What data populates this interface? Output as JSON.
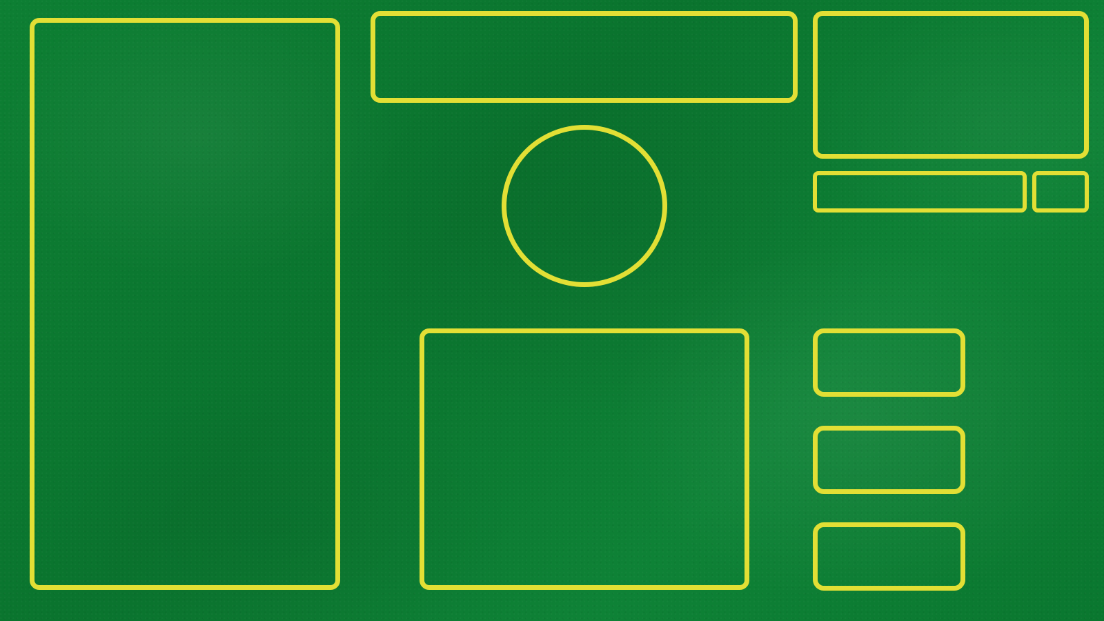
{
  "table": {
    "surface": "green-felt",
    "felt_color": "#0b7a30",
    "outline_color": "#e2df35",
    "zones": [
      {
        "name": "left-card-zone",
        "shape": "rounded-rectangle"
      },
      {
        "name": "top-center-zone",
        "shape": "rounded-rectangle"
      },
      {
        "name": "top-right-zone",
        "shape": "rounded-rectangle"
      },
      {
        "name": "right-wide-slot",
        "shape": "rounded-rectangle"
      },
      {
        "name": "right-small-slot",
        "shape": "rounded-rectangle"
      },
      {
        "name": "center-circle-zone",
        "shape": "circle"
      },
      {
        "name": "bottom-center-zone",
        "shape": "rounded-rectangle"
      },
      {
        "name": "right-slot-1",
        "shape": "rounded-rectangle"
      },
      {
        "name": "right-slot-2",
        "shape": "rounded-rectangle"
      },
      {
        "name": "right-slot-3",
        "shape": "rounded-rectangle"
      }
    ]
  }
}
